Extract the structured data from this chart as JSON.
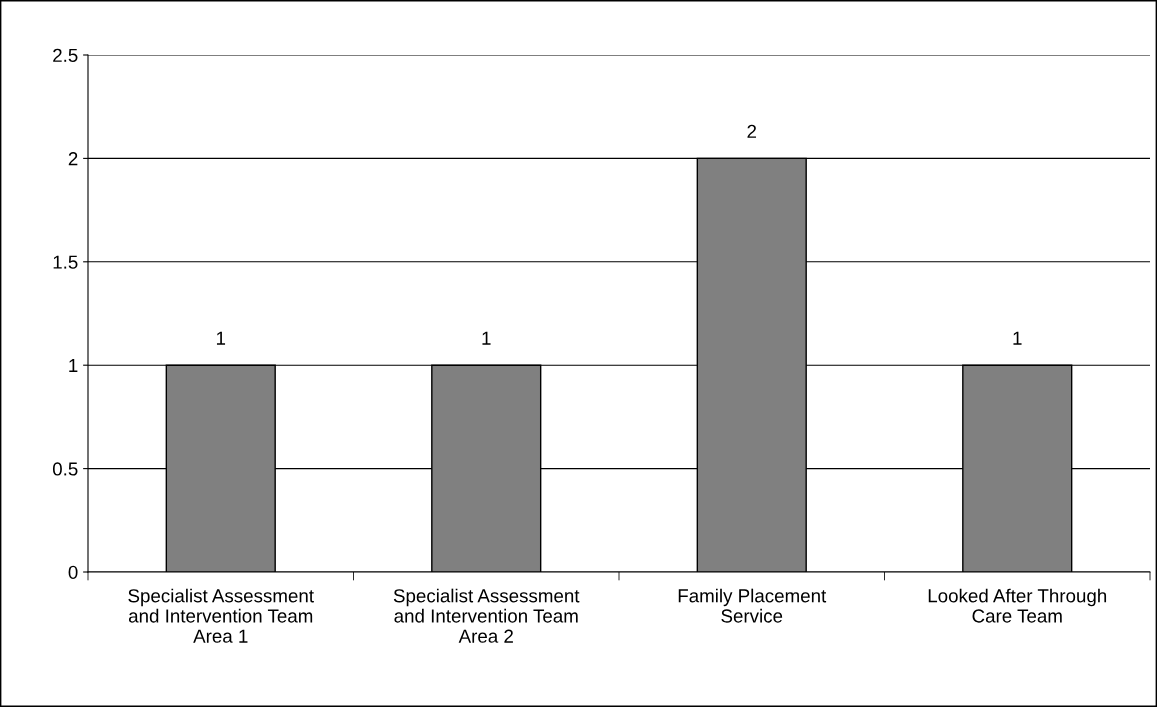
{
  "chart_data": {
    "type": "bar",
    "categories": [
      "Specialist Assessment\nand Intervention Team\nArea 1",
      "Specialist Assessment\nand Intervention Team\nArea 2",
      "Family Placement\nService",
      "Looked After Through\nCare Team"
    ],
    "values": [
      1,
      1,
      2,
      1
    ],
    "color": "#808080",
    "ylim": [
      0,
      2.5
    ],
    "yticks": [
      0,
      0.5,
      1,
      1.5,
      2,
      2.5
    ],
    "grid": "y",
    "data_labels": true
  }
}
